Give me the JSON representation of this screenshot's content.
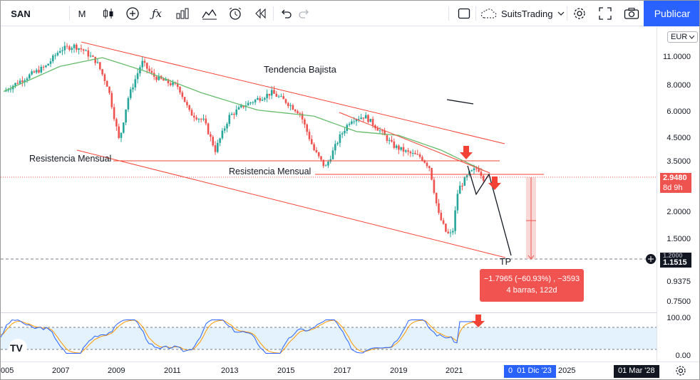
{
  "toolbar": {
    "symbol": "SAN",
    "interval": "M",
    "indicators_icon": "fx-icon",
    "account": "SuitsTrading",
    "publish": "Publicar"
  },
  "annotations": {
    "trend": "Tendencia Bajista",
    "resistance_left": "Resistencia Mensual",
    "resistance_right": "Resistencia Mensual",
    "tp": "TP"
  },
  "measure": {
    "line1": "−1.7965 (−60.93%) , −3593",
    "line2": "4 barras, 122d"
  },
  "price_axis": {
    "currency": "EUR",
    "ticks": [
      "11.0000",
      "8.0000",
      "6.0000",
      "4.5000",
      "3.5000",
      "2.0000",
      "1.5000",
      "0.9375",
      "0.7500"
    ],
    "last_price": "2.9480",
    "countdown": "8d 9h",
    "target_price": "1.1515",
    "hidden_price": "1.2000"
  },
  "osc_axis": {
    "ticks": [
      "100.00",
      "0.00"
    ]
  },
  "time_axis": {
    "ticks": [
      "005",
      "2007",
      "2009",
      "2011",
      "2013",
      "2015",
      "2017",
      "2019",
      "2021",
      "2025"
    ],
    "cursor_date": "01 Dic '23",
    "cursor_prefix": "0",
    "end_date": "01 Mar '28"
  },
  "colors": {
    "up": "#26a69a",
    "down": "#ef5350",
    "ma": "#66bb6a",
    "trend": "#f44336",
    "last": "#ef5350",
    "accent": "#2962ff"
  },
  "chart_data": {
    "type": "candlestick",
    "symbol": "SAN",
    "interval": "M",
    "currency": "EUR",
    "log_scale": true,
    "x_range": [
      "2005",
      "2028"
    ],
    "close_series": [
      {
        "year": 2005.0,
        "v": 7.6
      },
      {
        "year": 2005.5,
        "v": 8.4
      },
      {
        "year": 2006.0,
        "v": 9.2
      },
      {
        "year": 2006.5,
        "v": 10.0
      },
      {
        "year": 2007.0,
        "v": 12.0
      },
      {
        "year": 2007.5,
        "v": 12.5
      },
      {
        "year": 2007.8,
        "v": 12.0
      },
      {
        "year": 2008.3,
        "v": 10.5
      },
      {
        "year": 2008.7,
        "v": 8.0
      },
      {
        "year": 2009.1,
        "v": 4.4
      },
      {
        "year": 2009.4,
        "v": 7.0
      },
      {
        "year": 2009.9,
        "v": 10.5
      },
      {
        "year": 2010.3,
        "v": 9.0
      },
      {
        "year": 2010.7,
        "v": 8.5
      },
      {
        "year": 2011.2,
        "v": 8.0
      },
      {
        "year": 2011.6,
        "v": 6.0
      },
      {
        "year": 2012.1,
        "v": 5.5
      },
      {
        "year": 2012.5,
        "v": 4.0
      },
      {
        "year": 2013.0,
        "v": 5.8
      },
      {
        "year": 2013.5,
        "v": 6.5
      },
      {
        "year": 2014.0,
        "v": 7.0
      },
      {
        "year": 2014.5,
        "v": 7.5
      },
      {
        "year": 2015.0,
        "v": 6.8
      },
      {
        "year": 2015.5,
        "v": 6.0
      },
      {
        "year": 2016.0,
        "v": 4.0
      },
      {
        "year": 2016.4,
        "v": 3.3
      },
      {
        "year": 2016.9,
        "v": 4.6
      },
      {
        "year": 2017.3,
        "v": 5.6
      },
      {
        "year": 2017.8,
        "v": 5.8
      },
      {
        "year": 2018.3,
        "v": 5.0
      },
      {
        "year": 2018.8,
        "v": 4.2
      },
      {
        "year": 2019.3,
        "v": 3.9
      },
      {
        "year": 2019.8,
        "v": 3.7
      },
      {
        "year": 2020.1,
        "v": 3.3
      },
      {
        "year": 2020.4,
        "v": 2.0
      },
      {
        "year": 2020.7,
        "v": 1.6
      },
      {
        "year": 2020.9,
        "v": 1.6
      },
      {
        "year": 2021.1,
        "v": 2.6
      },
      {
        "year": 2021.5,
        "v": 3.1
      },
      {
        "year": 2021.8,
        "v": 3.3
      },
      {
        "year": 2022.0,
        "v": 2.95
      }
    ],
    "moving_average": [
      {
        "year": 2005.0,
        "v": 7.6
      },
      {
        "year": 2007.0,
        "v": 10.0
      },
      {
        "year": 2008.5,
        "v": 11.0
      },
      {
        "year": 2010.0,
        "v": 9.5
      },
      {
        "year": 2012.0,
        "v": 7.5
      },
      {
        "year": 2014.0,
        "v": 6.2
      },
      {
        "year": 2016.0,
        "v": 5.8
      },
      {
        "year": 2017.5,
        "v": 4.9
      },
      {
        "year": 2019.0,
        "v": 4.7
      },
      {
        "year": 2020.5,
        "v": 4.0
      },
      {
        "year": 2022.0,
        "v": 3.2
      }
    ],
    "last_price": 2.948,
    "target_price": 1.1515,
    "measure": {
      "change": -1.7965,
      "change_pct": -60.93,
      "ticks": -3593,
      "bars": 4,
      "days": 122
    },
    "oscillator": {
      "range": [
        0,
        100
      ],
      "upper_band": 80,
      "lower_band": 20,
      "last_k": 92,
      "last_d": 86
    }
  }
}
